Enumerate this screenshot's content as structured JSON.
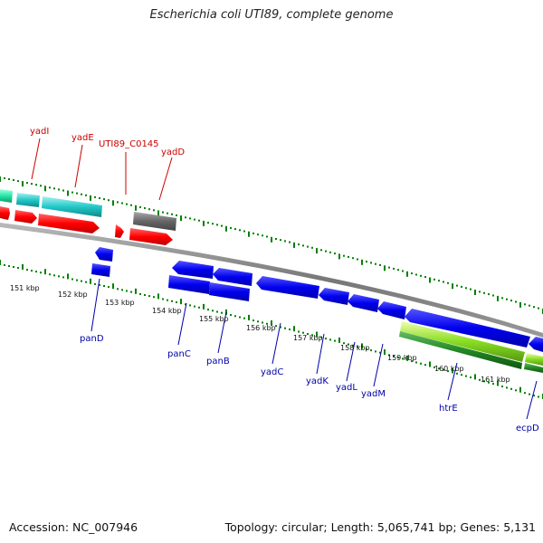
{
  "title": "Escherichia coli UTI89, complete genome",
  "footer": {
    "accession": "Accession: NC_007946",
    "summary": "Topology: circular; Length: 5,065,741 bp; Genes: 5,131"
  },
  "colors": {
    "forward_red": "#ff0000",
    "reverse_blue": "#0000ee",
    "gray": "#666666",
    "teal": "#22c8c8",
    "aqua_green": "#22e6a8",
    "rrna_green": "#88dd22",
    "dark_green": "#228822",
    "tick_green": "#008000",
    "backbone": "#888888",
    "label_red": "#cc0000",
    "label_blue": "#0000aa"
  },
  "ticks": [
    "151 kbp",
    "152 kbp",
    "153 kbp",
    "154 kbp",
    "155 kbp",
    "156 kbp",
    "157 kbp",
    "158 kbp",
    "159 kbp",
    "160 kbp",
    "161 kbp"
  ],
  "genes_forward": [
    "yadI",
    "yadE",
    "UTI89_C0145",
    "yadD"
  ],
  "genes_reverse": [
    "panD",
    "panC",
    "panB",
    "yadC",
    "yadK",
    "yadL",
    "yadM",
    "htrE",
    "ecpD"
  ]
}
